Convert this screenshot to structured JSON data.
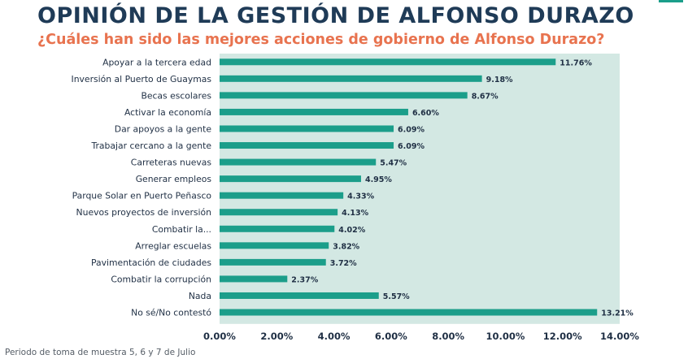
{
  "header": {
    "title": "OPINIÓN DE LA GESTIÓN DE ALFONSO DURAZO",
    "subtitle": "¿Cuáles han sido las mejores acciones de gobierno de Alfonso Durazo?"
  },
  "footer": {
    "note": "Periodo de toma de muestra 5, 6 y 7 de Julio"
  },
  "colors": {
    "bar": "#1b9e8a",
    "plot_bg": "#d3e8e3",
    "title": "#1f3b57",
    "subtitle": "#e8734f",
    "text": "#1f2f44"
  },
  "chart_data": {
    "type": "bar",
    "orientation": "horizontal",
    "title": "",
    "xlabel": "",
    "ylabel": "",
    "categories": [
      "Apoyar a la tercera edad",
      "Inversión al Puerto de Guaymas",
      "Becas escolares",
      "Activar la economía",
      "Dar apoyos a la gente",
      "Trabajar cercano a la gente",
      "Carreteras nuevas",
      "Generar empleos",
      "Parque Solar en Puerto Peñasco",
      "Nuevos proyectos de inversión",
      "Combatir la...",
      "Arreglar escuelas",
      "Pavimentación de ciudades",
      "Combatir la corrupción",
      "Nada",
      "No sé/No contestó"
    ],
    "values": [
      11.76,
      9.18,
      8.67,
      6.6,
      6.09,
      6.09,
      5.47,
      4.95,
      4.33,
      4.13,
      4.02,
      3.82,
      3.72,
      2.37,
      5.57,
      13.21
    ],
    "value_labels": [
      "11.76%",
      "9.18%",
      "8.67%",
      "6.60%",
      "6.09%",
      "6.09%",
      "5.47%",
      "4.95%",
      "4.33%",
      "4.13%",
      "4.02%",
      "3.82%",
      "3.72%",
      "2.37%",
      "5.57%",
      "13.21%"
    ],
    "xlim": [
      0,
      14
    ],
    "xticks": [
      0,
      2,
      4,
      6,
      8,
      10,
      12,
      14
    ],
    "xtick_labels": [
      "0.00%",
      "2.00%",
      "4.00%",
      "6.00%",
      "8.00%",
      "10.00%",
      "12.00%",
      "14.00%"
    ],
    "grid": false,
    "legend": "none"
  }
}
